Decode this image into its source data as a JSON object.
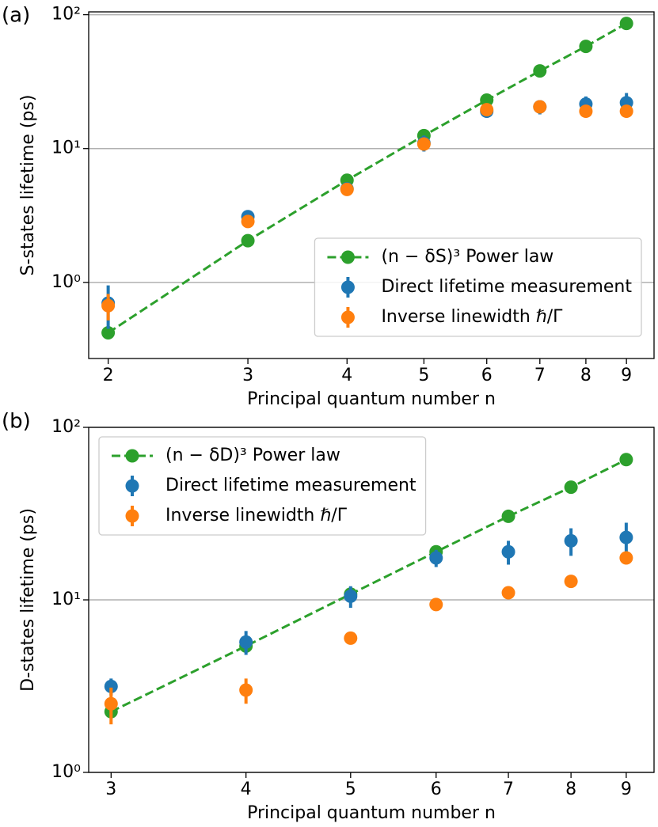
{
  "chart_data": [
    {
      "type": "scatter",
      "panel_label": "(a)",
      "xlabel": "Principal quantum number n",
      "ylabel": "S-states lifetime (ps)",
      "xscale": "log",
      "yscale": "log",
      "xlim": [
        1.89,
        9.75
      ],
      "ylim": [
        0.27,
        105
      ],
      "xticks": [
        2,
        3,
        4,
        5,
        6,
        7,
        8,
        9
      ],
      "yticks": [
        {
          "value": 1,
          "label": "10⁰"
        },
        {
          "value": 10,
          "label": "10¹"
        },
        {
          "value": 100,
          "label": "10²"
        }
      ],
      "grid": "y",
      "legend": "lower right",
      "x": [
        2,
        3,
        4,
        5,
        6,
        7,
        8,
        9
      ],
      "series": [
        {
          "name": "(n − δS)³ Power law",
          "color": "#2ca02c",
          "style": "dashed-line",
          "values": [
            0.42,
            2.05,
            5.8,
            12.5,
            23,
            38,
            58,
            86
          ]
        },
        {
          "name": "Direct lifetime measurement",
          "color": "#1f77b4",
          "style": "errorbar",
          "values": [
            0.7,
            3.1,
            5.0,
            11,
            19,
            20.5,
            21.5,
            22
          ],
          "errors": [
            0.25,
            0.2,
            0.3,
            1.5,
            2,
            2.5,
            3,
            4
          ]
        },
        {
          "name": "Inverse linewidth ℏ/Γ",
          "color": "#ff7f0e",
          "style": "errorbar",
          "values": [
            0.67,
            2.85,
            4.95,
            10.8,
            19.5,
            20.5,
            19,
            19
          ],
          "errors": [
            0.15,
            0.2,
            0.2,
            1,
            1,
            1,
            1,
            1.5
          ]
        }
      ]
    },
    {
      "type": "scatter",
      "panel_label": "(b)",
      "xlabel": "Principal quantum number n",
      "ylabel": "D-states lifetime (ps)",
      "xscale": "log",
      "yscale": "log",
      "xlim": [
        2.86,
        9.55
      ],
      "ylim": [
        1,
        100
      ],
      "xticks": [
        3,
        4,
        5,
        6,
        7,
        8,
        9
      ],
      "yticks": [
        {
          "value": 1,
          "label": "10⁰"
        },
        {
          "value": 10,
          "label": "10¹"
        },
        {
          "value": 100,
          "label": "10²"
        }
      ],
      "grid": "y",
      "legend": "upper left",
      "x": [
        3,
        4,
        5,
        6,
        7,
        8,
        9
      ],
      "series": [
        {
          "name": "(n − δD)³ Power law",
          "color": "#2ca02c",
          "style": "dashed-line",
          "values": [
            2.25,
            5.4,
            10.8,
            19,
            30.5,
            45,
            65
          ]
        },
        {
          "name": "Direct lifetime measurement",
          "color": "#1f77b4",
          "style": "errorbar",
          "values": [
            3.15,
            5.7,
            10.5,
            17.5,
            19,
            22,
            23
          ],
          "errors": [
            0.35,
            0.9,
            1.5,
            2,
            3,
            4,
            5
          ]
        },
        {
          "name": "Inverse linewidth ℏ/Γ",
          "color": "#ff7f0e",
          "style": "errorbar",
          "values": [
            2.5,
            3.0,
            6.0,
            9.4,
            11,
            12.8,
            17.5
          ],
          "errors": [
            0.6,
            0.5,
            0.3,
            0.4,
            0.5,
            0.5,
            1
          ]
        }
      ]
    }
  ]
}
